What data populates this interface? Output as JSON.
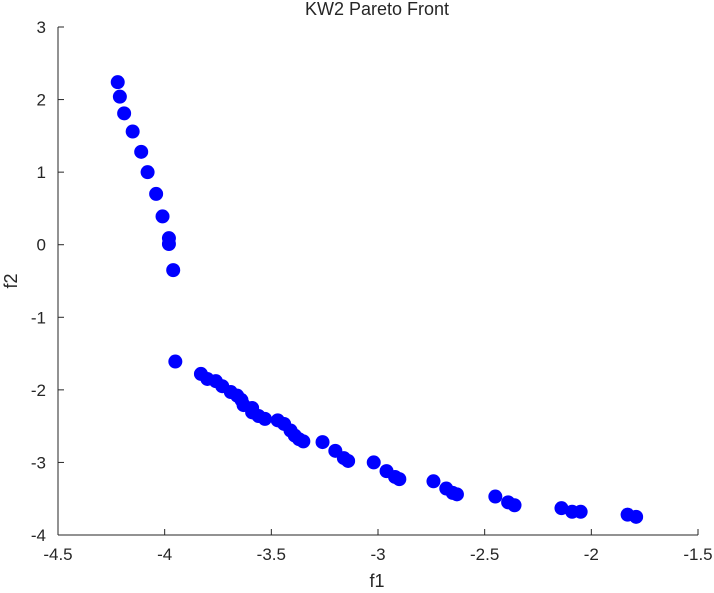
{
  "chart_data": {
    "type": "scatter",
    "title": "KW2 Pareto Front",
    "xlabel": "f1",
    "ylabel": "f2",
    "xlim": [
      -4.5,
      -1.5
    ],
    "ylim": [
      -4,
      3
    ],
    "xticks": [
      -4.5,
      -4,
      -3.5,
      -3,
      -2.5,
      -2,
      -1.5
    ],
    "yticks": [
      -4,
      -3,
      -2,
      -1,
      0,
      1,
      2,
      3
    ],
    "xtick_labels": [
      "-4.5",
      "-4",
      "-3.5",
      "-3",
      "-2.5",
      "-2",
      "-1.5"
    ],
    "ytick_labels": [
      "-4",
      "-3",
      "-2",
      "-1",
      "0",
      "1",
      "2",
      "3"
    ],
    "grid": false,
    "marker_color": "#0000ff",
    "series": [
      {
        "points": [
          [
            -4.22,
            2.24
          ],
          [
            -4.21,
            2.04
          ],
          [
            -4.19,
            1.81
          ],
          [
            -4.15,
            1.56
          ],
          [
            -4.11,
            1.28
          ],
          [
            -4.08,
            1.0
          ],
          [
            -4.04,
            0.7
          ],
          [
            -4.01,
            0.39
          ],
          [
            -3.98,
            0.09
          ],
          [
            -3.98,
            0.01
          ],
          [
            -3.96,
            -0.35
          ],
          [
            -3.95,
            -1.61
          ],
          [
            -3.83,
            -1.78
          ],
          [
            -3.8,
            -1.85
          ],
          [
            -3.76,
            -1.88
          ],
          [
            -3.73,
            -1.95
          ],
          [
            -3.69,
            -2.03
          ],
          [
            -3.66,
            -2.08
          ],
          [
            -3.64,
            -2.14
          ],
          [
            -3.63,
            -2.21
          ],
          [
            -3.59,
            -2.25
          ],
          [
            -3.59,
            -2.31
          ],
          [
            -3.56,
            -2.36
          ],
          [
            -3.53,
            -2.4
          ],
          [
            -3.47,
            -2.42
          ],
          [
            -3.44,
            -2.47
          ],
          [
            -3.41,
            -2.56
          ],
          [
            -3.39,
            -2.63
          ],
          [
            -3.37,
            -2.68
          ],
          [
            -3.35,
            -2.71
          ],
          [
            -3.26,
            -2.72
          ],
          [
            -3.2,
            -2.84
          ],
          [
            -3.16,
            -2.94
          ],
          [
            -3.14,
            -2.98
          ],
          [
            -3.02,
            -3.0
          ],
          [
            -2.96,
            -3.12
          ],
          [
            -2.92,
            -3.2
          ],
          [
            -2.9,
            -3.23
          ],
          [
            -2.74,
            -3.26
          ],
          [
            -2.68,
            -3.36
          ],
          [
            -2.65,
            -3.42
          ],
          [
            -2.63,
            -3.44
          ],
          [
            -2.45,
            -3.47
          ],
          [
            -2.39,
            -3.55
          ],
          [
            -2.36,
            -3.59
          ],
          [
            -2.14,
            -3.63
          ],
          [
            -2.09,
            -3.68
          ],
          [
            -2.05,
            -3.68
          ],
          [
            -1.83,
            -3.72
          ],
          [
            -1.79,
            -3.75
          ]
        ]
      }
    ]
  }
}
